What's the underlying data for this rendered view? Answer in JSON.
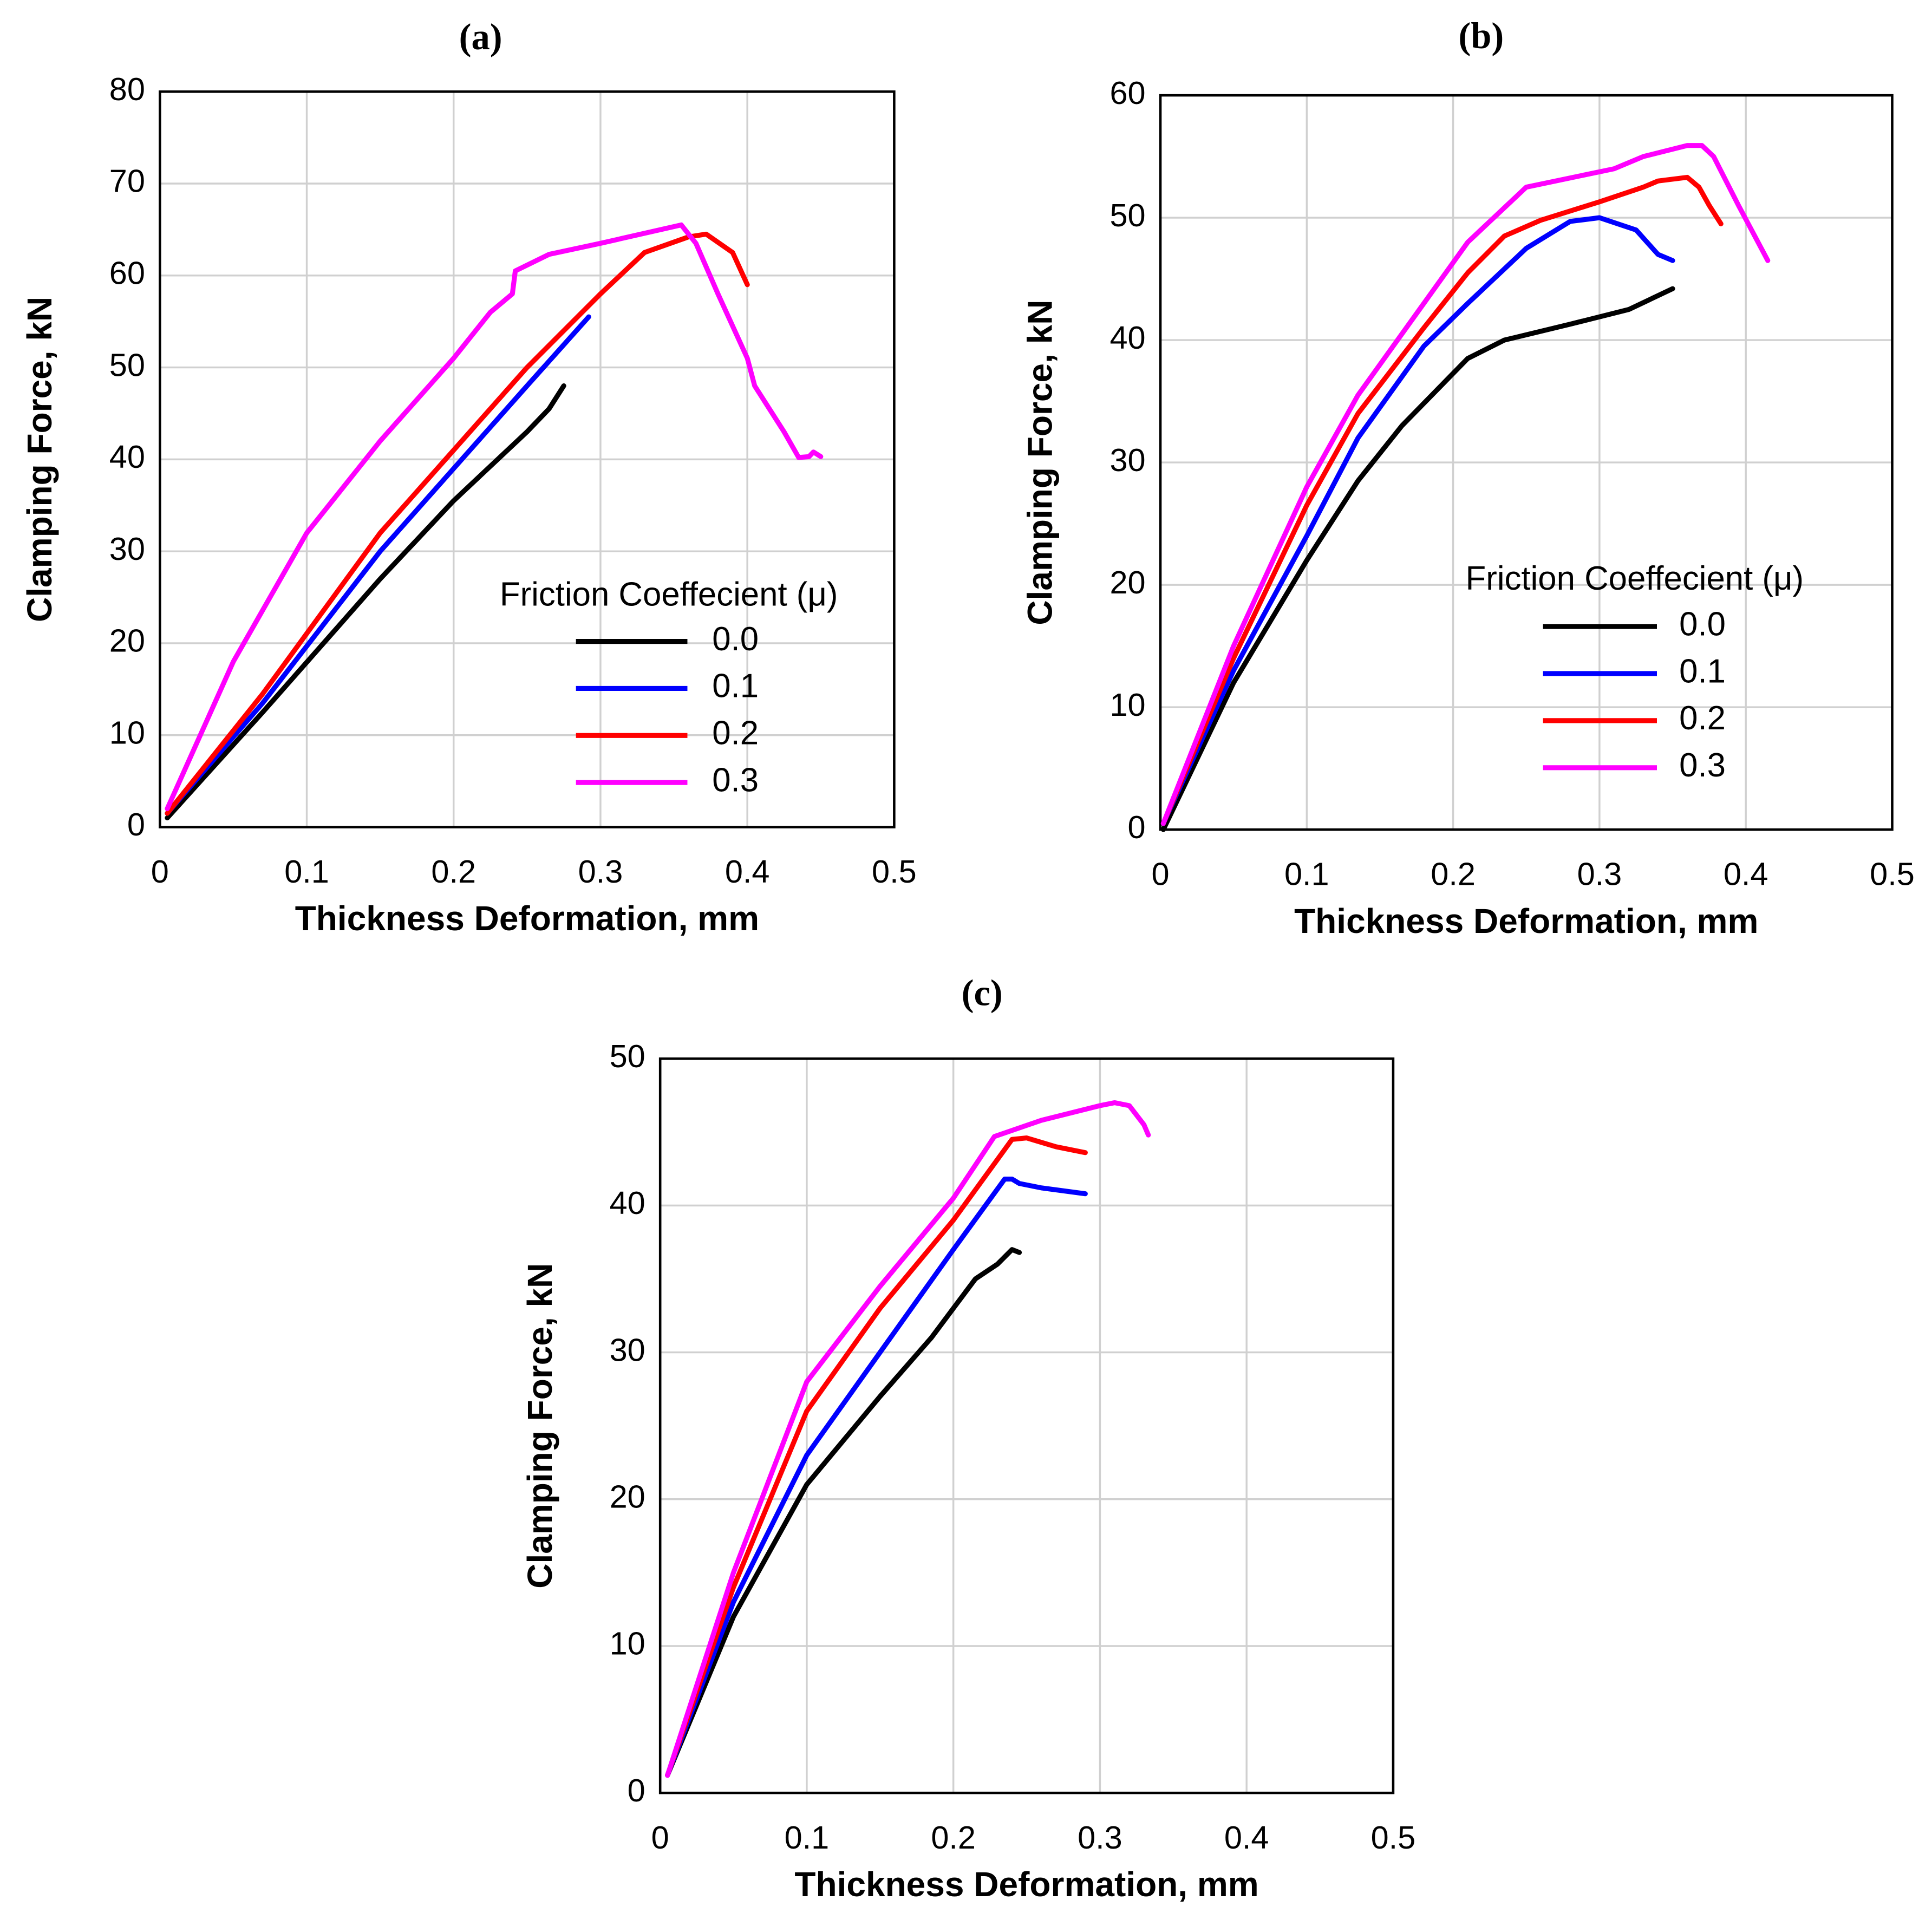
{
  "chart_data": [
    {
      "type": "line",
      "title": "(a)",
      "x_label": "Thickness Deformation, mm",
      "y_label": "Clamping Force, kN",
      "legend_title": "Friction Coeffecient (μ)",
      "legend": "lower right",
      "grid": true,
      "xlim": [
        0,
        0.5
      ],
      "xticks": [
        0,
        0.1,
        0.2,
        0.3,
        0.4,
        0.5
      ],
      "ylim": [
        0,
        80
      ],
      "yticks": [
        0,
        10,
        20,
        30,
        40,
        50,
        60,
        70,
        80
      ],
      "series": [
        {
          "name": "0.0",
          "color": "#000000",
          "x": [
            0.005,
            0.07,
            0.15,
            0.2,
            0.25,
            0.265,
            0.275
          ],
          "values": [
            1,
            12.5,
            27,
            35.5,
            43,
            45.5,
            48
          ]
        },
        {
          "name": "0.1",
          "color": "#0000ff",
          "x": [
            0.005,
            0.07,
            0.15,
            0.2,
            0.25,
            0.292
          ],
          "values": [
            1.5,
            13.5,
            30,
            39,
            48,
            55.5
          ]
        },
        {
          "name": "0.2",
          "color": "#ff0000",
          "x": [
            0.005,
            0.07,
            0.15,
            0.2,
            0.25,
            0.3,
            0.33,
            0.36,
            0.372,
            0.39,
            0.4
          ],
          "values": [
            1.5,
            14.5,
            32,
            41,
            50,
            58,
            62.5,
            64.2,
            64.5,
            62.5,
            59
          ]
        },
        {
          "name": "0.3",
          "color": "#ff00ff",
          "x": [
            0.005,
            0.05,
            0.1,
            0.15,
            0.2,
            0.225,
            0.24,
            0.242,
            0.265,
            0.3,
            0.355,
            0.365,
            0.38,
            0.4,
            0.405,
            0.425,
            0.435,
            0.442,
            0.445,
            0.45
          ],
          "values": [
            2,
            18,
            32,
            42,
            51,
            56,
            58,
            60.5,
            62.3,
            63.5,
            65.5,
            63.5,
            58,
            51,
            48,
            43,
            40.2,
            40.3,
            40.8,
            40.3
          ]
        }
      ]
    },
    {
      "type": "line",
      "title": "(b)",
      "x_label": "Thickness Deformation, mm",
      "y_label": "Clamping Force, kN",
      "legend_title": "Friction Coeffecient (μ)",
      "legend": "lower right",
      "grid": true,
      "xlim": [
        0,
        0.5
      ],
      "xticks": [
        0,
        0.1,
        0.2,
        0.3,
        0.4,
        0.5
      ],
      "ylim": [
        0,
        60
      ],
      "yticks": [
        0,
        10,
        20,
        30,
        40,
        50,
        60
      ],
      "series": [
        {
          "name": "0.0",
          "color": "#000000",
          "x": [
            0.002,
            0.05,
            0.1,
            0.135,
            0.165,
            0.21,
            0.235,
            0.28,
            0.32,
            0.35
          ],
          "values": [
            0,
            12,
            22,
            28.5,
            33,
            38.5,
            40,
            41.3,
            42.5,
            44.2
          ]
        },
        {
          "name": "0.1",
          "color": "#0000ff",
          "x": [
            0.002,
            0.05,
            0.1,
            0.135,
            0.18,
            0.21,
            0.25,
            0.28,
            0.3,
            0.325,
            0.34,
            0.35
          ],
          "values": [
            0.5,
            13,
            24,
            32,
            39.5,
            43,
            47.5,
            49.7,
            50,
            49,
            47,
            46.5
          ]
        },
        {
          "name": "0.2",
          "color": "#ff0000",
          "x": [
            0.002,
            0.05,
            0.1,
            0.135,
            0.18,
            0.21,
            0.235,
            0.26,
            0.3,
            0.33,
            0.34,
            0.36,
            0.368,
            0.375,
            0.383
          ],
          "values": [
            0.5,
            14,
            26.5,
            34,
            41,
            45.5,
            48.5,
            49.8,
            51.3,
            52.5,
            53,
            53.3,
            52.5,
            51,
            49.5
          ]
        },
        {
          "name": "0.3",
          "color": "#ff00ff",
          "x": [
            0.002,
            0.05,
            0.1,
            0.135,
            0.18,
            0.21,
            0.25,
            0.31,
            0.33,
            0.36,
            0.37,
            0.378,
            0.395,
            0.415
          ],
          "values": [
            0.5,
            15,
            28,
            35.5,
            43,
            48,
            52.5,
            54,
            55,
            55.9,
            55.9,
            55,
            51,
            46.5
          ]
        }
      ]
    },
    {
      "type": "line",
      "title": "(c)",
      "x_label": "Thickness Deformation, mm",
      "y_label": "Clamping Force, kN",
      "grid": true,
      "xlim": [
        0,
        0.5
      ],
      "xticks": [
        0,
        0.1,
        0.2,
        0.3,
        0.4,
        0.5
      ],
      "ylim": [
        0,
        50
      ],
      "yticks": [
        0,
        10,
        20,
        30,
        40,
        50
      ],
      "series": [
        {
          "color": "#000000",
          "x": [
            0.005,
            0.05,
            0.1,
            0.15,
            0.185,
            0.215,
            0.23,
            0.24,
            0.245
          ],
          "values": [
            1.2,
            12,
            21,
            27,
            31,
            35,
            36,
            37,
            36.8
          ]
        },
        {
          "color": "#0000ff",
          "x": [
            0.005,
            0.05,
            0.1,
            0.15,
            0.2,
            0.235,
            0.24,
            0.245,
            0.26,
            0.29
          ],
          "values": [
            1.2,
            13,
            23,
            30,
            37,
            41.8,
            41.8,
            41.5,
            41.2,
            40.8
          ]
        },
        {
          "color": "#ff0000",
          "x": [
            0.005,
            0.05,
            0.1,
            0.15,
            0.2,
            0.24,
            0.25,
            0.27,
            0.29
          ],
          "values": [
            1.2,
            14,
            26,
            33,
            39,
            44.5,
            44.6,
            44,
            43.6
          ]
        },
        {
          "color": "#ff00ff",
          "x": [
            0.005,
            0.05,
            0.1,
            0.15,
            0.2,
            0.228,
            0.26,
            0.3,
            0.31,
            0.32,
            0.33,
            0.333
          ],
          "values": [
            1.2,
            15,
            28,
            34.5,
            40.5,
            44.7,
            45.8,
            46.8,
            47,
            46.8,
            45.5,
            44.8
          ]
        }
      ]
    }
  ]
}
